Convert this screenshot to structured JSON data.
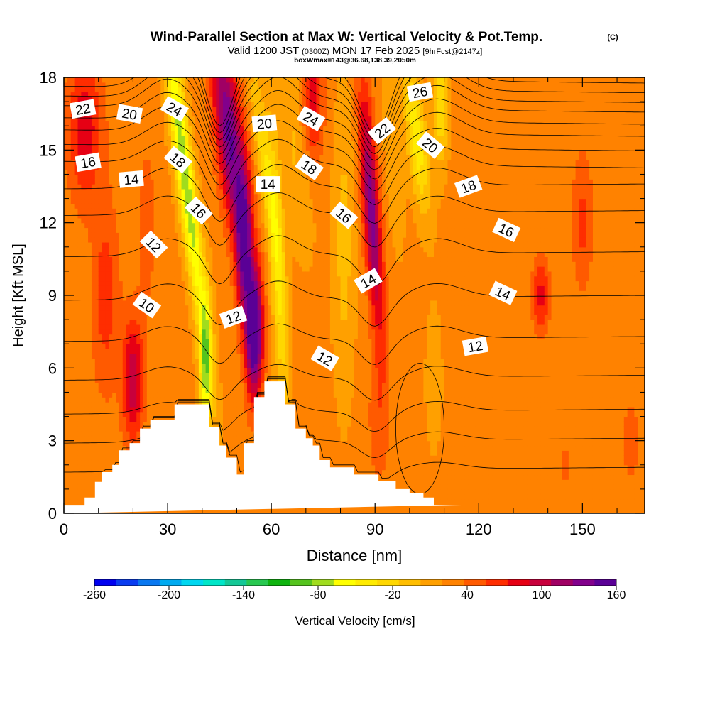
{
  "chart_data": {
    "type": "heatmap",
    "title": "Wind-Parallel Section at Max W: Vertical Velocity & Pot.Temp.",
    "copyright": "(C)",
    "subtitle_parts": [
      "Valid 1200 JST",
      "(0300Z)",
      "MON 17 Feb 2025",
      "[9hrFcst@2147z]"
    ],
    "subtitle2": "boxWmax=143@36.68,138.39,2050m",
    "xlabel": "Distance [nm]",
    "ylabel": "Height [Kft MSL]",
    "xlim": [
      0,
      168
    ],
    "ylim": [
      0,
      18
    ],
    "xticks": [
      0,
      30,
      60,
      90,
      120,
      150
    ],
    "yticks": [
      0,
      3,
      6,
      9,
      12,
      15,
      18
    ],
    "colorbar_label": "Vertical Velocity [cm/s]",
    "colorbar_ticks": [
      "-260",
      "-200",
      "-140",
      "-80",
      "-20",
      "40",
      "100",
      "160"
    ],
    "colorbar_colors": [
      "#0000f0",
      "#0a3cf0",
      "#0a78f0",
      "#00aaf0",
      "#00d7f0",
      "#00e6c8",
      "#14c896",
      "#28c850",
      "#0fb40f",
      "#55c31e",
      "#a0dc1e",
      "#ffff00",
      "#ffeb00",
      "#ffd700",
      "#ffbe00",
      "#ffa000",
      "#ff8200",
      "#ff5a00",
      "#ff2d00",
      "#e60014",
      "#c8003c",
      "#a00064",
      "#82008c",
      "#5a0096"
    ],
    "colorbar_range": [
      -260,
      160
    ],
    "background_w": 25,
    "terrain": {
      "x": [
        0,
        6,
        6,
        9,
        9,
        11,
        11,
        14,
        14,
        16,
        16,
        19,
        19,
        22,
        22,
        25,
        25,
        32,
        32,
        42,
        42,
        45,
        45,
        47,
        47,
        50,
        50,
        52,
        52,
        55,
        55,
        58,
        58,
        64,
        64,
        67,
        67,
        70,
        70,
        72,
        72,
        74,
        74,
        77,
        77,
        84,
        84,
        87,
        87,
        91,
        91,
        96,
        96,
        100,
        100,
        104,
        104,
        107,
        107,
        115,
        115,
        168
      ],
      "h": [
        0.35,
        0.35,
        0.65,
        0.65,
        1.3,
        1.3,
        1.7,
        1.7,
        2.0,
        2.0,
        2.6,
        2.6,
        2.9,
        2.9,
        3.5,
        3.5,
        3.85,
        3.85,
        4.5,
        4.5,
        3.55,
        3.55,
        2.8,
        2.8,
        2.3,
        2.3,
        1.6,
        1.6,
        2.9,
        2.9,
        4.8,
        4.8,
        5.45,
        5.45,
        4.5,
        4.5,
        3.5,
        3.5,
        3.1,
        3.1,
        2.8,
        2.8,
        2.2,
        2.2,
        1.9,
        1.9,
        1.6,
        1.6,
        1.6,
        1.6,
        1.35,
        1.35,
        1.0,
        1.0,
        0.85,
        0.85,
        0.65,
        0.65,
        0.35,
        0.35
      ]
    },
    "w_features": [
      {
        "x": 35,
        "y": 14,
        "wx": 2.6,
        "sy": 7,
        "w": -110,
        "tilt": -0.28
      },
      {
        "x": 41,
        "y": 6,
        "wx": 1.8,
        "sy": 3,
        "w": -90,
        "tilt": 0
      },
      {
        "x": 48,
        "y": 15.5,
        "wx": 3.8,
        "sy": 4.5,
        "w": 120,
        "tilt": -0.25
      },
      {
        "x": 52,
        "y": 11,
        "wx": 2.2,
        "sy": 3,
        "w": 100,
        "tilt": 0
      },
      {
        "x": 55,
        "y": 7.5,
        "wx": 2.4,
        "sy": 2.6,
        "w": 160,
        "tilt": 0
      },
      {
        "x": 58,
        "y": 14.5,
        "wx": 2.2,
        "sy": 4,
        "w": -50,
        "tilt": -0.3
      },
      {
        "x": 62,
        "y": 10,
        "wx": 2.2,
        "sy": 6,
        "w": -60,
        "tilt": -0.1
      },
      {
        "x": 67,
        "y": 15,
        "wx": 4,
        "sy": 4,
        "w": -25,
        "tilt": -0.2
      },
      {
        "x": 72,
        "y": 17,
        "wx": 3,
        "sy": 2.5,
        "w": 60,
        "tilt": 0
      },
      {
        "x": 81,
        "y": 11,
        "wx": 3,
        "sy": 6,
        "w": -30,
        "tilt": 0
      },
      {
        "x": 89,
        "y": 12.5,
        "wx": 2.4,
        "sy": 5,
        "w": 110,
        "tilt": -0.15
      },
      {
        "x": 95,
        "y": 15,
        "wx": 2.5,
        "sy": 4,
        "w": -20,
        "tilt": -0.15
      },
      {
        "x": 102,
        "y": 15.5,
        "wx": 2.8,
        "sy": 3,
        "w": -70,
        "tilt": -0.25
      },
      {
        "x": 109,
        "y": 17,
        "wx": 2.2,
        "sy": 2.5,
        "w": -60,
        "tilt": 0
      },
      {
        "x": 91,
        "y": 4,
        "wx": 3,
        "sy": 3,
        "w": 25,
        "tilt": 0
      },
      {
        "x": 101,
        "y": 5,
        "wx": 3,
        "sy": 3,
        "w": 0,
        "tilt": 0
      },
      {
        "x": 107,
        "y": 5.5,
        "wx": 2.5,
        "sy": 3,
        "w": -15,
        "tilt": 0
      },
      {
        "x": 20,
        "y": 5.5,
        "wx": 3,
        "sy": 2.5,
        "w": 80,
        "tilt": 0
      },
      {
        "x": 12,
        "y": 9,
        "wx": 4,
        "sy": 4,
        "w": 40,
        "tilt": 0
      },
      {
        "x": 6,
        "y": 16,
        "wx": 5,
        "sy": 3,
        "w": 60,
        "tilt": 0
      },
      {
        "x": 24,
        "y": 12,
        "wx": 3,
        "sy": 4,
        "w": 20,
        "tilt": 0
      },
      {
        "x": 138,
        "y": 9,
        "wx": 2.5,
        "sy": 1.5,
        "w": 55,
        "tilt": 0
      },
      {
        "x": 151,
        "y": 6.5,
        "wx": 4,
        "sy": 3,
        "w": -5,
        "tilt": 0
      },
      {
        "x": 150,
        "y": 12,
        "wx": 3,
        "sy": 3,
        "w": 35,
        "tilt": 0
      },
      {
        "x": 128,
        "y": 3,
        "wx": 4,
        "sy": 3,
        "w": 5,
        "tilt": 0
      },
      {
        "x": 164,
        "y": 3,
        "wx": 3,
        "sy": 2,
        "w": 20,
        "tilt": 0
      },
      {
        "x": 120,
        "y": 14,
        "wx": 6,
        "sy": 3,
        "w": 10,
        "tilt": 0
      },
      {
        "x": 145,
        "y": 2,
        "wx": 3,
        "sy": 1.5,
        "w": 15,
        "tilt": 0
      }
    ],
    "isentrope_heights": [
      1.8,
      3,
      4.2,
      5.6,
      7.2,
      8.9,
      10.7,
      12.4,
      13.5,
      14.4,
      15.1,
      15.7,
      16.2,
      16.7,
      17.1,
      17.5,
      17.9,
      18.3
    ],
    "contour_labels": [
      {
        "text": "22",
        "x": 5.5,
        "y": 16.7,
        "rot": -10
      },
      {
        "text": "20",
        "x": 19,
        "y": 16.5,
        "rot": 10
      },
      {
        "text": "24",
        "x": 32,
        "y": 16.7,
        "rot": 30
      },
      {
        "text": "16",
        "x": 7,
        "y": 14.5,
        "rot": -10
      },
      {
        "text": "18",
        "x": 33,
        "y": 14.6,
        "rot": 40
      },
      {
        "text": "14",
        "x": 19.5,
        "y": 13.8,
        "rot": -5
      },
      {
        "text": "16",
        "x": 39,
        "y": 12.5,
        "rot": 45
      },
      {
        "text": "12",
        "x": 26,
        "y": 11.1,
        "rot": 45
      },
      {
        "text": "10",
        "x": 24,
        "y": 8.6,
        "rot": 35
      },
      {
        "text": "12",
        "x": 49,
        "y": 8.1,
        "rot": -20
      },
      {
        "text": "20",
        "x": 58,
        "y": 16.1,
        "rot": -5
      },
      {
        "text": "14",
        "x": 59,
        "y": 13.6,
        "rot": 0
      },
      {
        "text": "24",
        "x": 71.5,
        "y": 16.3,
        "rot": 30
      },
      {
        "text": "18",
        "x": 71,
        "y": 14.3,
        "rot": 35
      },
      {
        "text": "16",
        "x": 81,
        "y": 12.3,
        "rot": 40
      },
      {
        "text": "12",
        "x": 75.5,
        "y": 6.4,
        "rot": 30
      },
      {
        "text": "14",
        "x": 88,
        "y": 9.6,
        "rot": -30
      },
      {
        "text": "22",
        "x": 92,
        "y": 15.8,
        "rot": -40
      },
      {
        "text": "26",
        "x": 103,
        "y": 17.4,
        "rot": -10
      },
      {
        "text": "20",
        "x": 106,
        "y": 15.2,
        "rot": 40
      },
      {
        "text": "18",
        "x": 117,
        "y": 13.5,
        "rot": -20
      },
      {
        "text": "16",
        "x": 128,
        "y": 11.7,
        "rot": 25
      },
      {
        "text": "14",
        "x": 127,
        "y": 9.1,
        "rot": 25
      },
      {
        "text": "12",
        "x": 119,
        "y": 6.9,
        "rot": -10
      }
    ]
  }
}
